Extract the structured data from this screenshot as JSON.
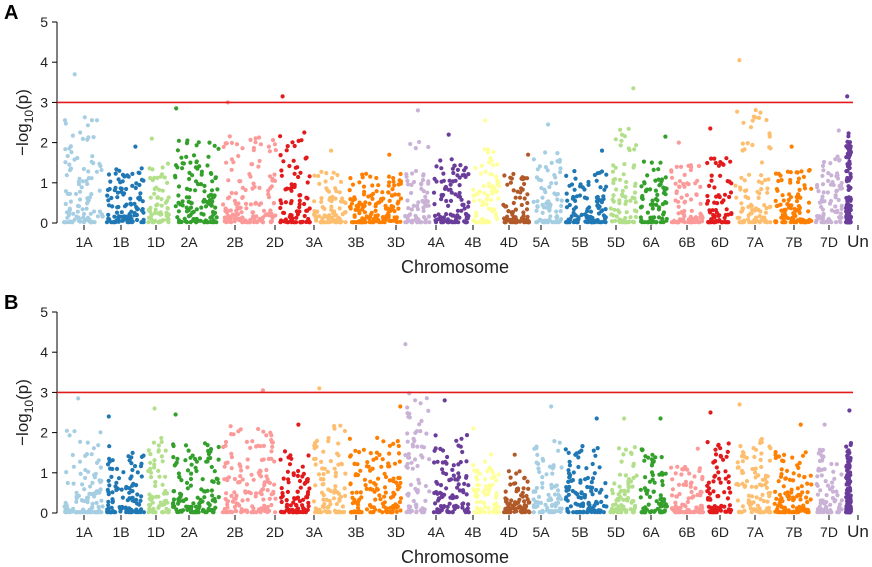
{
  "chart_data": [
    {
      "type": "scatter",
      "panel": "A",
      "title": "",
      "xlabel": "Chromosome",
      "ylabel_prefix": "−log",
      "ylabel_sub": "10",
      "ylabel_suffix": "(p)",
      "ylim": [
        0,
        5
      ],
      "yticks": [
        "0",
        "1",
        "2",
        "3",
        "4",
        "5"
      ],
      "threshold": 3,
      "threshold_color": "#e31a1c",
      "categories": [
        "1A",
        "1B",
        "1D",
        "2A",
        "2B",
        "2D",
        "3A",
        "3B",
        "3D",
        "4A",
        "4B",
        "4D",
        "5A",
        "5B",
        "5D",
        "6A",
        "6B",
        "6D",
        "7A",
        "7B",
        "7D",
        "Un"
      ],
      "peaks": [
        3.7,
        1.9,
        2.1,
        2.85,
        3.0,
        3.15,
        1.8,
        1.7,
        2.8,
        2.2,
        2.55,
        1.7,
        2.45,
        1.8,
        3.35,
        2.15,
        2.0,
        2.35,
        4.05,
        1.9,
        2.3,
        3.15
      ],
      "seed": 11
    },
    {
      "type": "scatter",
      "panel": "B",
      "title": "",
      "xlabel": "Chromosome",
      "ylabel_prefix": "−log",
      "ylabel_sub": "10",
      "ylabel_suffix": "(p)",
      "ylim": [
        0,
        5
      ],
      "yticks": [
        "0",
        "1",
        "2",
        "3",
        "4",
        "5"
      ],
      "threshold": 3,
      "threshold_color": "#e31a1c",
      "categories": [
        "1A",
        "1B",
        "1D",
        "2A",
        "2B",
        "2D",
        "3A",
        "3B",
        "3D",
        "4A",
        "4B",
        "4D",
        "5A",
        "5B",
        "5D",
        "6A",
        "6B",
        "6D",
        "7A",
        "7B",
        "7D",
        "Un"
      ],
      "peaks": [
        2.85,
        2.4,
        2.6,
        2.45,
        3.05,
        2.2,
        3.1,
        2.65,
        4.2,
        2.8,
        2.1,
        1.45,
        2.65,
        2.35,
        2.35,
        2.35,
        1.6,
        2.5,
        2.7,
        2.2,
        2.2,
        2.55
      ],
      "seed": 23
    }
  ],
  "colors": {
    "1A": "#a6cee3",
    "1B": "#1f78b4",
    "1D": "#b2df8a",
    "2A": "#33a02c",
    "2B": "#fb9a99",
    "2D": "#e31a1c",
    "3A": "#fdbf6f",
    "3B": "#ff7f00",
    "3D": "#cab2d6",
    "4A": "#6a3d9a",
    "4B": "#ffff99",
    "4D": "#b15928",
    "5A": "#a6cee3",
    "5B": "#1f78b4",
    "5D": "#b2df8a",
    "6A": "#33a02c",
    "6B": "#fb9a99",
    "6D": "#e31a1c",
    "7A": "#fdbf6f",
    "7B": "#ff7f00",
    "7D": "#cab2d6",
    "Un": "#6a3d9a"
  }
}
